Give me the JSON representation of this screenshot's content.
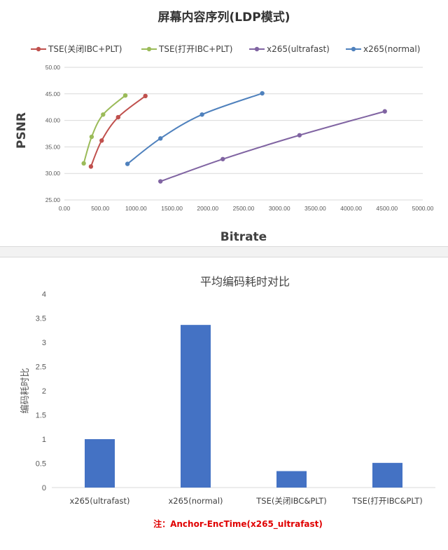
{
  "chart_data": [
    {
      "type": "line",
      "title": "屏幕内容序列(LDP模式)",
      "xlabel": "Bitrate",
      "ylabel": "PSNR",
      "xlim": [
        0,
        5000
      ],
      "ylim": [
        25,
        50
      ],
      "x_ticks": [
        "0.00",
        "500.00",
        "1000.00",
        "1500.00",
        "2000.00",
        "2500.00",
        "3000.00",
        "3500.00",
        "4000.00",
        "4500.00",
        "5000.00"
      ],
      "y_ticks": [
        "25.00",
        "30.00",
        "35.00",
        "40.00",
        "45.00",
        "50.00"
      ],
      "legend_position": "top",
      "grid": true,
      "series": [
        {
          "name": "TSE(关闭IBC+PLT)",
          "color": "#c0504d",
          "points": [
            [
              370,
              31.3
            ],
            [
              520,
              36.2
            ],
            [
              750,
              40.6
            ],
            [
              1130,
              44.6
            ]
          ]
        },
        {
          "name": "TSE(打开IBC+PLT)",
          "color": "#9bbb59",
          "points": [
            [
              270,
              31.9
            ],
            [
              380,
              36.9
            ],
            [
              540,
              41.1
            ],
            [
              850,
              44.7
            ]
          ]
        },
        {
          "name": "x265(ultrafast)",
          "color": "#8064a2",
          "points": [
            [
              1340,
              28.5
            ],
            [
              2210,
              32.7
            ],
            [
              3280,
              37.2
            ],
            [
              4470,
              41.7
            ]
          ]
        },
        {
          "name": "x265(normal)",
          "color": "#4f81bd",
          "points": [
            [
              880,
              31.8
            ],
            [
              1340,
              36.6
            ],
            [
              1920,
              41.1
            ],
            [
              2760,
              45.1
            ]
          ]
        }
      ]
    },
    {
      "type": "bar",
      "title": "平均编码耗时对比",
      "ylabel": "编码耗时比",
      "ylim": [
        0,
        4
      ],
      "y_ticks": [
        "0",
        "0.5",
        "1",
        "1.5",
        "2",
        "2.5",
        "3",
        "3.5",
        "4"
      ],
      "grid": false,
      "color": "#4472c4",
      "categories": [
        "x265(ultrafast)",
        "x265(normal)",
        "TSE(关闭IBC&PLT)",
        "TSE(打开IBC&PLT)"
      ],
      "values": [
        1.0,
        3.36,
        0.34,
        0.51
      ],
      "note": "注：Anchor-EncTime(x265_ultrafast)"
    }
  ]
}
